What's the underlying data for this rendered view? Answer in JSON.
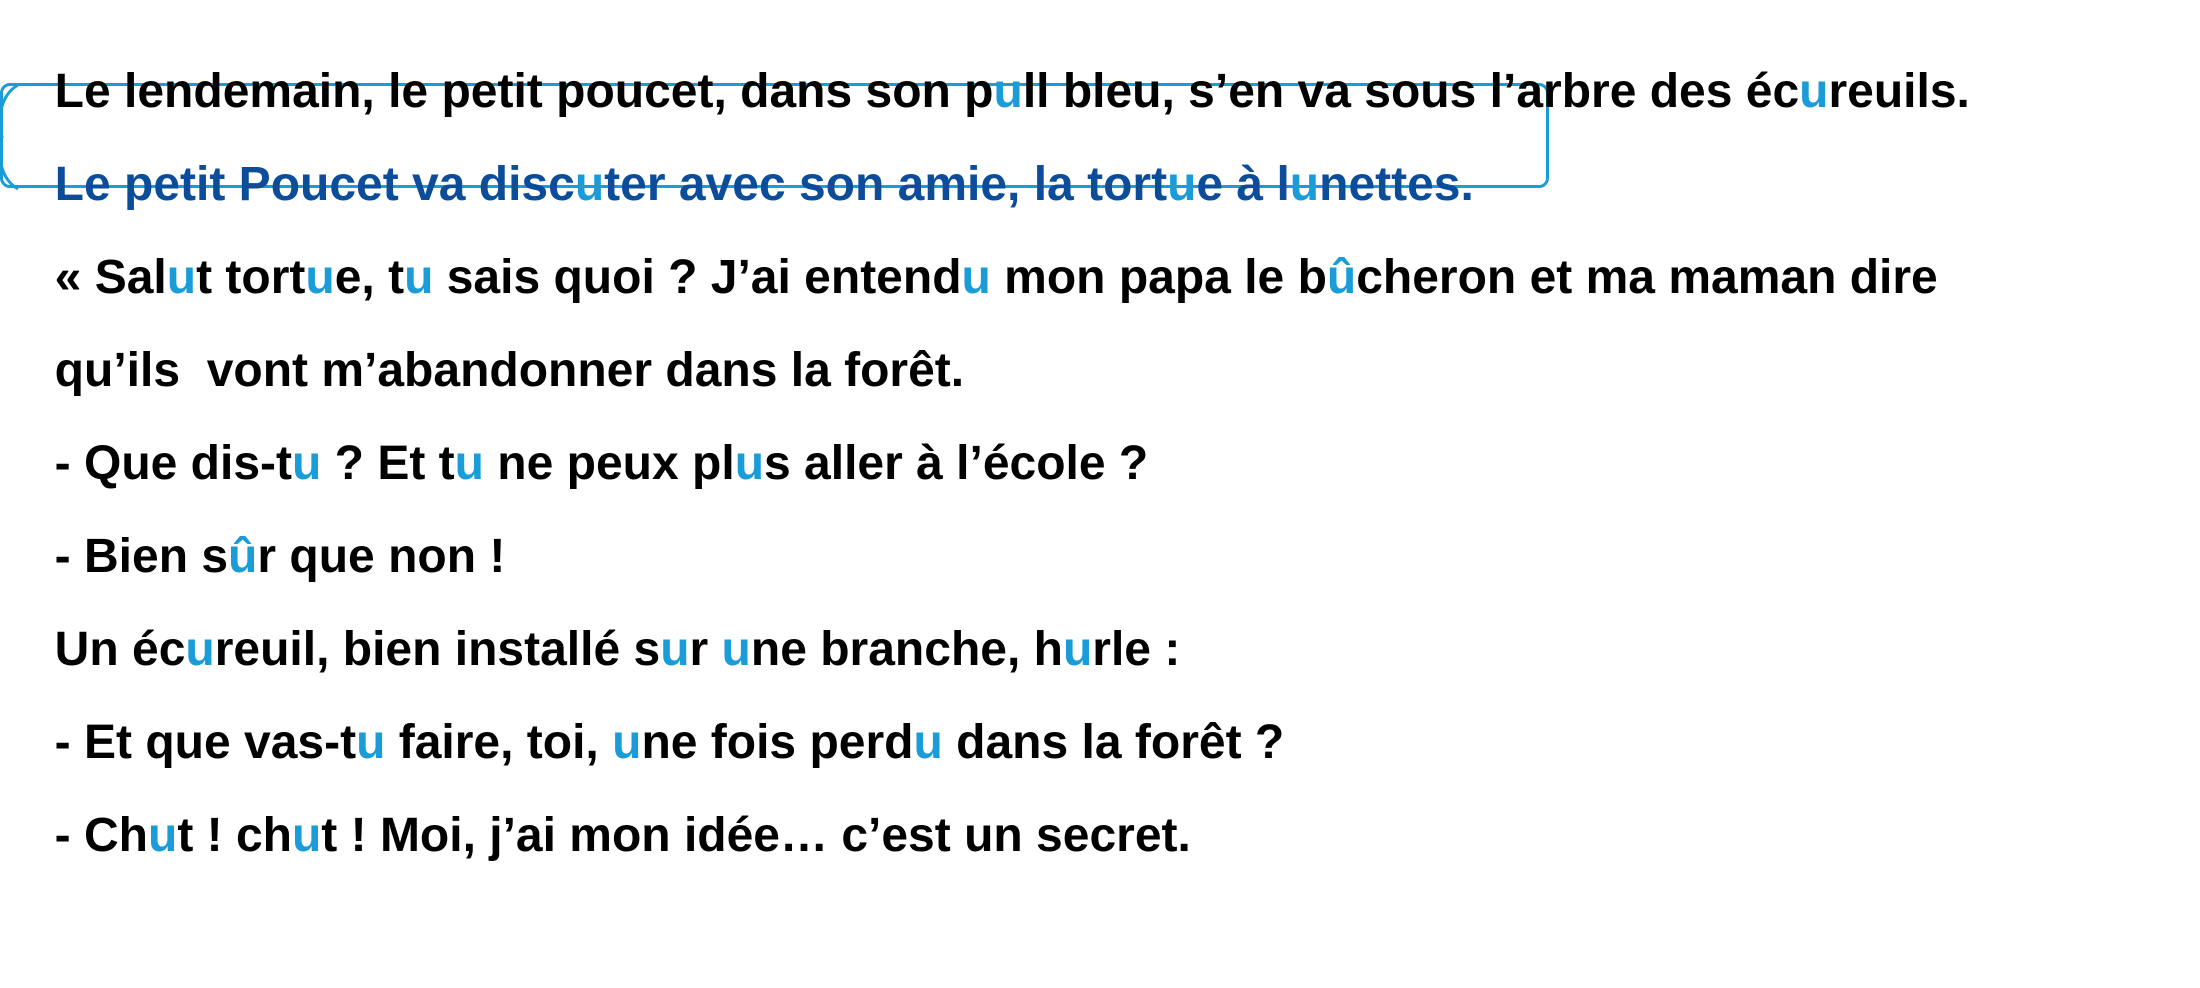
{
  "colors": {
    "text": "#000000",
    "vowel_highlight": "#1a9cd8",
    "highlight_text": "#0b4d9b",
    "box_border": "#1a9cd8"
  },
  "lines": [
    {
      "id": "line-1",
      "segments": [
        "Le lendemain, le petit poucet, dans son p",
        "u",
        "ll bleu, s’en va sous l’arbre des éc",
        "u",
        "reuils."
      ]
    },
    {
      "id": "line-2",
      "segments": [
        "Le petit Poucet va disc",
        "u",
        "ter avec son amie, la tort",
        "u",
        "e à l",
        "u",
        "nettes."
      ]
    },
    {
      "id": "line-3",
      "segments": [
        "« Sal",
        "u",
        "t tort",
        "u",
        "e, t",
        "u",
        " sais quoi ? J’ai entend",
        "u",
        " mon papa le b",
        "û",
        "cheron et ma maman dire"
      ]
    },
    {
      "id": "line-4",
      "segments": [
        "qu’ils  vont m’abandonner dans la forêt."
      ]
    },
    {
      "id": "line-5",
      "segments": [
        "- Que dis-t",
        "u",
        " ? Et t",
        "u",
        " ne peux pl",
        "u",
        "s aller à l’école ?"
      ]
    },
    {
      "id": "line-6",
      "segments": [
        "- Bien s",
        "û",
        "r que non !"
      ]
    },
    {
      "id": "line-7",
      "segments": [
        "Un éc",
        "u",
        "reuil, bien installé s",
        "u",
        "r ",
        "u",
        "ne branche, h",
        "u",
        "rle :"
      ]
    },
    {
      "id": "line-8",
      "segments": [
        "- Et que vas-t",
        "u",
        " faire, toi, ",
        "u",
        "ne fois perd",
        "u",
        " dans la forêt ?"
      ]
    },
    {
      "id": "line-9",
      "segments": [
        "- Ch",
        "u",
        "t ! ch",
        "u",
        "t ! Moi, j’ai mon idée… c’est un secret."
      ]
    }
  ]
}
